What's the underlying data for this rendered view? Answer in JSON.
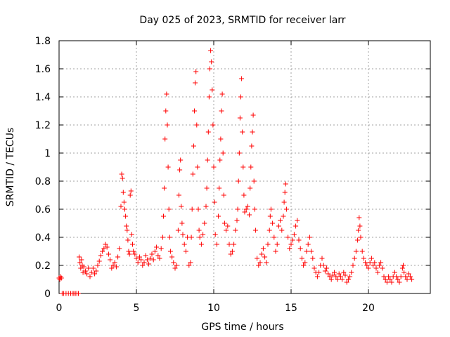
{
  "chart_data": {
    "type": "scatter",
    "title": "Day 025 of 2023, SRMTID for receiver larr",
    "xlabel": "GPS time / hours",
    "ylabel": "SRMTID / TECUs",
    "xlim": [
      0,
      24
    ],
    "ylim": [
      0,
      1.8
    ],
    "grid": true,
    "marker": "+",
    "color": "#ff0000",
    "xticks": [
      0,
      5,
      10,
      15,
      20
    ],
    "xtick_labels": [
      "0",
      "5",
      "10",
      "15",
      "20"
    ],
    "yticks": [
      0,
      0.2,
      0.4,
      0.6,
      0.8,
      1.0,
      1.2,
      1.4,
      1.6,
      1.8
    ],
    "ytick_labels": [
      "0",
      "0.2",
      "0.4",
      "0.6",
      "0.8",
      "1",
      "1.2",
      "1.4",
      "1.6",
      "1.8"
    ],
    "series": [
      {
        "name": "larr",
        "points": [
          [
            0.0,
            0.11
          ],
          [
            0.05,
            0.1
          ],
          [
            0.1,
            0.12
          ],
          [
            0.15,
            0.11
          ],
          [
            0.2,
            0.0
          ],
          [
            0.3,
            0.0
          ],
          [
            0.45,
            0.0
          ],
          [
            0.6,
            0.0
          ],
          [
            0.75,
            0.0
          ],
          [
            0.85,
            0.0
          ],
          [
            0.95,
            0.0
          ],
          [
            1.05,
            0.0
          ],
          [
            1.15,
            0.0
          ],
          [
            1.25,
            0.0
          ],
          [
            1.3,
            0.26
          ],
          [
            1.35,
            0.22
          ],
          [
            1.4,
            0.18
          ],
          [
            1.45,
            0.24
          ],
          [
            1.5,
            0.2
          ],
          [
            1.55,
            0.15
          ],
          [
            1.6,
            0.19
          ],
          [
            1.7,
            0.16
          ],
          [
            1.8,
            0.14
          ],
          [
            1.9,
            0.18
          ],
          [
            2.0,
            0.12
          ],
          [
            2.1,
            0.15
          ],
          [
            2.2,
            0.18
          ],
          [
            2.3,
            0.14
          ],
          [
            2.4,
            0.16
          ],
          [
            2.5,
            0.2
          ],
          [
            2.6,
            0.23
          ],
          [
            2.7,
            0.27
          ],
          [
            2.8,
            0.3
          ],
          [
            2.9,
            0.32
          ],
          [
            3.0,
            0.35
          ],
          [
            3.1,
            0.33
          ],
          [
            3.2,
            0.28
          ],
          [
            3.3,
            0.24
          ],
          [
            3.4,
            0.18
          ],
          [
            3.5,
            0.2
          ],
          [
            3.6,
            0.22
          ],
          [
            3.7,
            0.19
          ],
          [
            3.8,
            0.26
          ],
          [
            3.9,
            0.32
          ],
          [
            4.0,
            0.62
          ],
          [
            4.05,
            0.85
          ],
          [
            4.1,
            0.82
          ],
          [
            4.15,
            0.72
          ],
          [
            4.2,
            0.65
          ],
          [
            4.25,
            0.6
          ],
          [
            4.3,
            0.55
          ],
          [
            4.35,
            0.48
          ],
          [
            4.4,
            0.45
          ],
          [
            4.45,
            0.38
          ],
          [
            4.5,
            0.3
          ],
          [
            4.55,
            0.28
          ],
          [
            4.6,
            0.7
          ],
          [
            4.65,
            0.73
          ],
          [
            4.7,
            0.42
          ],
          [
            4.75,
            0.35
          ],
          [
            4.8,
            0.3
          ],
          [
            4.9,
            0.28
          ],
          [
            5.0,
            0.25
          ],
          [
            5.1,
            0.22
          ],
          [
            5.2,
            0.26
          ],
          [
            5.3,
            0.24
          ],
          [
            5.4,
            0.2
          ],
          [
            5.5,
            0.22
          ],
          [
            5.6,
            0.27
          ],
          [
            5.7,
            0.24
          ],
          [
            5.8,
            0.21
          ],
          [
            5.9,
            0.25
          ],
          [
            6.0,
            0.28
          ],
          [
            6.1,
            0.24
          ],
          [
            6.2,
            0.3
          ],
          [
            6.3,
            0.33
          ],
          [
            6.4,
            0.27
          ],
          [
            6.5,
            0.25
          ],
          [
            6.6,
            0.32
          ],
          [
            6.7,
            0.4
          ],
          [
            6.75,
            0.55
          ],
          [
            6.8,
            0.75
          ],
          [
            6.85,
            1.1
          ],
          [
            6.9,
            1.3
          ],
          [
            6.95,
            1.42
          ],
          [
            7.0,
            1.2
          ],
          [
            7.05,
            0.9
          ],
          [
            7.1,
            0.6
          ],
          [
            7.15,
            0.4
          ],
          [
            7.2,
            0.3
          ],
          [
            7.3,
            0.26
          ],
          [
            7.4,
            0.22
          ],
          [
            7.5,
            0.18
          ],
          [
            7.6,
            0.2
          ],
          [
            7.7,
            0.45
          ],
          [
            7.75,
            0.7
          ],
          [
            7.8,
            0.88
          ],
          [
            7.85,
            0.95
          ],
          [
            7.9,
            0.62
          ],
          [
            7.95,
            0.5
          ],
          [
            8.0,
            0.42
          ],
          [
            8.1,
            0.35
          ],
          [
            8.2,
            0.3
          ],
          [
            8.3,
            0.4
          ],
          [
            8.4,
            0.2
          ],
          [
            8.5,
            0.22
          ],
          [
            8.55,
            0.4
          ],
          [
            8.6,
            0.6
          ],
          [
            8.65,
            0.85
          ],
          [
            8.7,
            1.05
          ],
          [
            8.75,
            1.3
          ],
          [
            8.8,
            1.5
          ],
          [
            8.85,
            1.58
          ],
          [
            8.9,
            1.2
          ],
          [
            8.95,
            0.9
          ],
          [
            9.0,
            0.6
          ],
          [
            9.05,
            0.45
          ],
          [
            9.1,
            0.4
          ],
          [
            9.2,
            0.35
          ],
          [
            9.3,
            0.42
          ],
          [
            9.4,
            0.5
          ],
          [
            9.5,
            0.62
          ],
          [
            9.55,
            0.75
          ],
          [
            9.6,
            0.95
          ],
          [
            9.65,
            1.15
          ],
          [
            9.7,
            1.4
          ],
          [
            9.75,
            1.6
          ],
          [
            9.8,
            1.73
          ],
          [
            9.85,
            1.65
          ],
          [
            9.9,
            1.45
          ],
          [
            9.95,
            1.2
          ],
          [
            10.0,
            0.9
          ],
          [
            10.05,
            0.65
          ],
          [
            10.1,
            0.42
          ],
          [
            10.2,
            0.35
          ],
          [
            10.3,
            0.55
          ],
          [
            10.35,
            0.75
          ],
          [
            10.4,
            0.95
          ],
          [
            10.45,
            1.1
          ],
          [
            10.5,
            1.3
          ],
          [
            10.55,
            1.42
          ],
          [
            10.6,
            1.0
          ],
          [
            10.65,
            0.7
          ],
          [
            10.7,
            0.5
          ],
          [
            10.8,
            0.45
          ],
          [
            10.9,
            0.48
          ],
          [
            11.0,
            0.35
          ],
          [
            11.1,
            0.28
          ],
          [
            11.2,
            0.3
          ],
          [
            11.3,
            0.35
          ],
          [
            11.4,
            0.45
          ],
          [
            11.5,
            0.52
          ],
          [
            11.55,
            0.6
          ],
          [
            11.6,
            0.8
          ],
          [
            11.65,
            1.0
          ],
          [
            11.7,
            1.25
          ],
          [
            11.75,
            1.4
          ],
          [
            11.8,
            1.53
          ],
          [
            11.85,
            1.15
          ],
          [
            11.9,
            0.9
          ],
          [
            11.95,
            0.7
          ],
          [
            12.0,
            0.58
          ],
          [
            12.1,
            0.6
          ],
          [
            12.2,
            0.62
          ],
          [
            12.3,
            0.56
          ],
          [
            12.35,
            0.75
          ],
          [
            12.4,
            0.9
          ],
          [
            12.45,
            1.05
          ],
          [
            12.5,
            1.15
          ],
          [
            12.55,
            1.27
          ],
          [
            12.6,
            0.8
          ],
          [
            12.65,
            0.6
          ],
          [
            12.7,
            0.45
          ],
          [
            12.8,
            0.25
          ],
          [
            12.9,
            0.2
          ],
          [
            13.0,
            0.22
          ],
          [
            13.1,
            0.28
          ],
          [
            13.2,
            0.32
          ],
          [
            13.3,
            0.26
          ],
          [
            13.4,
            0.22
          ],
          [
            13.5,
            0.35
          ],
          [
            13.6,
            0.45
          ],
          [
            13.65,
            0.55
          ],
          [
            13.7,
            0.6
          ],
          [
            13.8,
            0.5
          ],
          [
            13.9,
            0.4
          ],
          [
            14.0,
            0.3
          ],
          [
            14.1,
            0.35
          ],
          [
            14.2,
            0.48
          ],
          [
            14.3,
            0.52
          ],
          [
            14.4,
            0.45
          ],
          [
            14.5,
            0.55
          ],
          [
            14.55,
            0.65
          ],
          [
            14.6,
            0.72
          ],
          [
            14.65,
            0.78
          ],
          [
            14.7,
            0.6
          ],
          [
            14.8,
            0.4
          ],
          [
            14.9,
            0.32
          ],
          [
            15.0,
            0.35
          ],
          [
            15.1,
            0.38
          ],
          [
            15.2,
            0.42
          ],
          [
            15.3,
            0.48
          ],
          [
            15.4,
            0.52
          ],
          [
            15.5,
            0.38
          ],
          [
            15.6,
            0.32
          ],
          [
            15.7,
            0.25
          ],
          [
            15.8,
            0.2
          ],
          [
            15.9,
            0.22
          ],
          [
            16.0,
            0.3
          ],
          [
            16.1,
            0.35
          ],
          [
            16.2,
            0.4
          ],
          [
            16.3,
            0.3
          ],
          [
            16.4,
            0.25
          ],
          [
            16.5,
            0.18
          ],
          [
            16.6,
            0.15
          ],
          [
            16.7,
            0.12
          ],
          [
            16.8,
            0.15
          ],
          [
            16.9,
            0.2
          ],
          [
            17.0,
            0.25
          ],
          [
            17.1,
            0.2
          ],
          [
            17.2,
            0.16
          ],
          [
            17.3,
            0.18
          ],
          [
            17.4,
            0.14
          ],
          [
            17.5,
            0.12
          ],
          [
            17.6,
            0.1
          ],
          [
            17.7,
            0.13
          ],
          [
            17.8,
            0.15
          ],
          [
            17.9,
            0.12
          ],
          [
            18.0,
            0.1
          ],
          [
            18.1,
            0.14
          ],
          [
            18.2,
            0.12
          ],
          [
            18.3,
            0.1
          ],
          [
            18.4,
            0.15
          ],
          [
            18.5,
            0.13
          ],
          [
            18.6,
            0.08
          ],
          [
            18.7,
            0.1
          ],
          [
            18.8,
            0.12
          ],
          [
            18.9,
            0.15
          ],
          [
            19.0,
            0.2
          ],
          [
            19.1,
            0.25
          ],
          [
            19.2,
            0.3
          ],
          [
            19.3,
            0.38
          ],
          [
            19.35,
            0.45
          ],
          [
            19.4,
            0.54
          ],
          [
            19.45,
            0.48
          ],
          [
            19.5,
            0.4
          ],
          [
            19.6,
            0.3
          ],
          [
            19.7,
            0.25
          ],
          [
            19.8,
            0.22
          ],
          [
            19.9,
            0.2
          ],
          [
            20.0,
            0.18
          ],
          [
            20.1,
            0.22
          ],
          [
            20.2,
            0.25
          ],
          [
            20.3,
            0.2
          ],
          [
            20.4,
            0.22
          ],
          [
            20.5,
            0.18
          ],
          [
            20.6,
            0.15
          ],
          [
            20.7,
            0.2
          ],
          [
            20.8,
            0.22
          ],
          [
            20.9,
            0.18
          ],
          [
            21.0,
            0.12
          ],
          [
            21.1,
            0.1
          ],
          [
            21.2,
            0.08
          ],
          [
            21.3,
            0.12
          ],
          [
            21.4,
            0.1
          ],
          [
            21.5,
            0.08
          ],
          [
            21.6,
            0.12
          ],
          [
            21.7,
            0.15
          ],
          [
            21.8,
            0.12
          ],
          [
            21.9,
            0.1
          ],
          [
            22.0,
            0.08
          ],
          [
            22.1,
            0.12
          ],
          [
            22.2,
            0.18
          ],
          [
            22.25,
            0.2
          ],
          [
            22.3,
            0.15
          ],
          [
            22.4,
            0.12
          ],
          [
            22.5,
            0.1
          ],
          [
            22.6,
            0.14
          ],
          [
            22.7,
            0.12
          ],
          [
            22.8,
            0.1
          ]
        ]
      }
    ]
  }
}
